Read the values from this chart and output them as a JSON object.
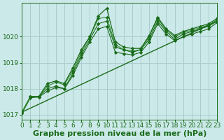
{
  "background_color": "#cce9e9",
  "grid_color": "#aacccc",
  "line_color": "#1a6b1a",
  "line_color2": "#2d8b2d",
  "xlabel": "Graphe pression niveau de la mer (hPa)",
  "xlabel_fontsize": 8,
  "tick_fontsize": 6.5,
  "xlim": [
    0,
    23
  ],
  "ylim": [
    1016.8,
    1021.3
  ],
  "yticks": [
    1017,
    1018,
    1019,
    1020
  ],
  "xticks": [
    0,
    1,
    2,
    3,
    4,
    5,
    6,
    7,
    8,
    9,
    10,
    11,
    12,
    13,
    14,
    15,
    16,
    17,
    18,
    19,
    20,
    21,
    22,
    23
  ],
  "series1_x": [
    0,
    1,
    2,
    3,
    4,
    5,
    6,
    7,
    8,
    9,
    10,
    11,
    12,
    13,
    14,
    15,
    16,
    17,
    18,
    19,
    20,
    21,
    22,
    23
  ],
  "series1_y": [
    1017.1,
    1017.7,
    1017.7,
    1018.0,
    1018.1,
    1018.0,
    1018.6,
    1019.3,
    1019.9,
    1020.5,
    1020.6,
    1019.6,
    1019.5,
    1019.4,
    1019.5,
    1019.9,
    1020.6,
    1020.2,
    1019.9,
    1020.1,
    1020.2,
    1020.3,
    1020.4,
    1020.6
  ],
  "series2_x": [
    0,
    1,
    2,
    3,
    4,
    5,
    6,
    7,
    8,
    9,
    10,
    11,
    12,
    13,
    14,
    15,
    16,
    17,
    18,
    19,
    20,
    21,
    22,
    23
  ],
  "series2_y": [
    1017.1,
    1017.7,
    1017.7,
    1018.1,
    1018.25,
    1018.15,
    1018.7,
    1019.4,
    1020.0,
    1020.7,
    1020.75,
    1019.7,
    1019.5,
    1019.45,
    1019.5,
    1020.0,
    1020.7,
    1020.25,
    1020.0,
    1020.15,
    1020.25,
    1020.35,
    1020.45,
    1020.65
  ],
  "series3_x": [
    1,
    2,
    3,
    4,
    5,
    6,
    7,
    8,
    9,
    10,
    11,
    12,
    13,
    14,
    15,
    16,
    17,
    18,
    19,
    20,
    21,
    22,
    23
  ],
  "series3_y": [
    1017.7,
    1017.7,
    1018.2,
    1018.3,
    1018.2,
    1018.8,
    1019.5,
    1020.0,
    1020.8,
    1021.1,
    1019.8,
    1019.6,
    1019.55,
    1019.55,
    1020.05,
    1020.75,
    1020.3,
    1020.05,
    1020.2,
    1020.3,
    1020.4,
    1020.5,
    1020.7
  ],
  "series4_x": [
    0,
    1,
    2,
    3,
    4,
    5,
    6,
    7,
    8,
    9,
    10,
    11,
    12,
    13,
    14,
    15,
    16,
    17,
    18,
    19,
    20,
    21,
    22,
    23
  ],
  "series4_y": [
    1017.05,
    1017.65,
    1017.68,
    1017.9,
    1018.05,
    1018.0,
    1018.5,
    1019.2,
    1019.8,
    1020.3,
    1020.4,
    1019.4,
    1019.35,
    1019.3,
    1019.4,
    1019.8,
    1020.5,
    1020.1,
    1019.85,
    1020.0,
    1020.1,
    1020.2,
    1020.3,
    1020.55
  ],
  "series5_x": [
    0,
    23
  ],
  "series5_y": [
    1017.1,
    1020.6
  ]
}
